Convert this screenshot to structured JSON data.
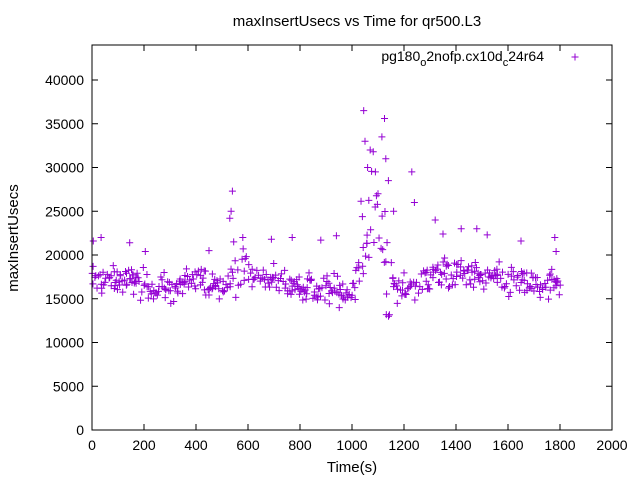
{
  "chart_data": {
    "type": "scatter",
    "title": "maxInsertUsecs vs Time for qr500.L3",
    "xlabel": "Time(s)",
    "ylabel": "maxInsertUsecs",
    "xlim": [
      0,
      2000
    ],
    "ylim": [
      0,
      44000
    ],
    "xticks": [
      0,
      200,
      400,
      600,
      800,
      1000,
      1200,
      1400,
      1600,
      1800,
      2000
    ],
    "yticks": [
      0,
      5000,
      10000,
      15000,
      20000,
      25000,
      30000,
      35000,
      40000
    ],
    "grid": false,
    "legend_position": "top-right",
    "series": [
      {
        "name": "pg180_o2nofp.cx10d_c24r64",
        "color": "#9400d3",
        "marker": "plus",
        "legend_parts": [
          {
            "text": "pg180",
            "sub": false
          },
          {
            "text": "o",
            "sub": true
          },
          {
            "text": "2nofp.cx10d",
            "sub": false
          },
          {
            "text": "c",
            "sub": true
          },
          {
            "text": "24r64",
            "sub": false
          }
        ],
        "x_range": [
          0,
          1800
        ],
        "sample_interval": 5,
        "profile": [
          {
            "x": 0,
            "y": 17000
          },
          {
            "x": 100,
            "y": 17000
          },
          {
            "x": 200,
            "y": 16600
          },
          {
            "x": 300,
            "y": 16000
          },
          {
            "x": 400,
            "y": 17000
          },
          {
            "x": 520,
            "y": 16800
          },
          {
            "x": 560,
            "y": 18800
          },
          {
            "x": 620,
            "y": 17600
          },
          {
            "x": 700,
            "y": 17200
          },
          {
            "x": 800,
            "y": 16400
          },
          {
            "x": 900,
            "y": 15800
          },
          {
            "x": 1000,
            "y": 15800
          },
          {
            "x": 1040,
            "y": 20000
          },
          {
            "x": 1080,
            "y": 27000
          },
          {
            "x": 1110,
            "y": 24000
          },
          {
            "x": 1140,
            "y": 17000
          },
          {
            "x": 1180,
            "y": 15600
          },
          {
            "x": 1220,
            "y": 16400
          },
          {
            "x": 1300,
            "y": 17600
          },
          {
            "x": 1400,
            "y": 18000
          },
          {
            "x": 1500,
            "y": 17600
          },
          {
            "x": 1600,
            "y": 17000
          },
          {
            "x": 1700,
            "y": 16600
          },
          {
            "x": 1800,
            "y": 16400
          }
        ],
        "outliers": [
          {
            "x": 5,
            "y": 21600
          },
          {
            "x": 35,
            "y": 22000
          },
          {
            "x": 145,
            "y": 21400
          },
          {
            "x": 205,
            "y": 20400
          },
          {
            "x": 450,
            "y": 20500
          },
          {
            "x": 530,
            "y": 24200
          },
          {
            "x": 535,
            "y": 25000
          },
          {
            "x": 540,
            "y": 27300
          },
          {
            "x": 545,
            "y": 21500
          },
          {
            "x": 580,
            "y": 22000
          },
          {
            "x": 690,
            "y": 21800
          },
          {
            "x": 770,
            "y": 22000
          },
          {
            "x": 880,
            "y": 21700
          },
          {
            "x": 940,
            "y": 22200
          },
          {
            "x": 1045,
            "y": 36500
          },
          {
            "x": 1050,
            "y": 33000
          },
          {
            "x": 1060,
            "y": 30000
          },
          {
            "x": 1070,
            "y": 32000
          },
          {
            "x": 1090,
            "y": 29500
          },
          {
            "x": 1100,
            "y": 27000
          },
          {
            "x": 1115,
            "y": 33500
          },
          {
            "x": 1125,
            "y": 35600
          },
          {
            "x": 1130,
            "y": 31000
          },
          {
            "x": 1140,
            "y": 28500
          },
          {
            "x": 1160,
            "y": 25000
          },
          {
            "x": 1230,
            "y": 29500
          },
          {
            "x": 1240,
            "y": 26000
          },
          {
            "x": 1320,
            "y": 24000
          },
          {
            "x": 1350,
            "y": 22400
          },
          {
            "x": 1420,
            "y": 23000
          },
          {
            "x": 1480,
            "y": 23000
          },
          {
            "x": 1520,
            "y": 22300
          },
          {
            "x": 1650,
            "y": 21600
          },
          {
            "x": 1780,
            "y": 22000
          },
          {
            "x": 1785,
            "y": 20400
          }
        ]
      }
    ]
  }
}
